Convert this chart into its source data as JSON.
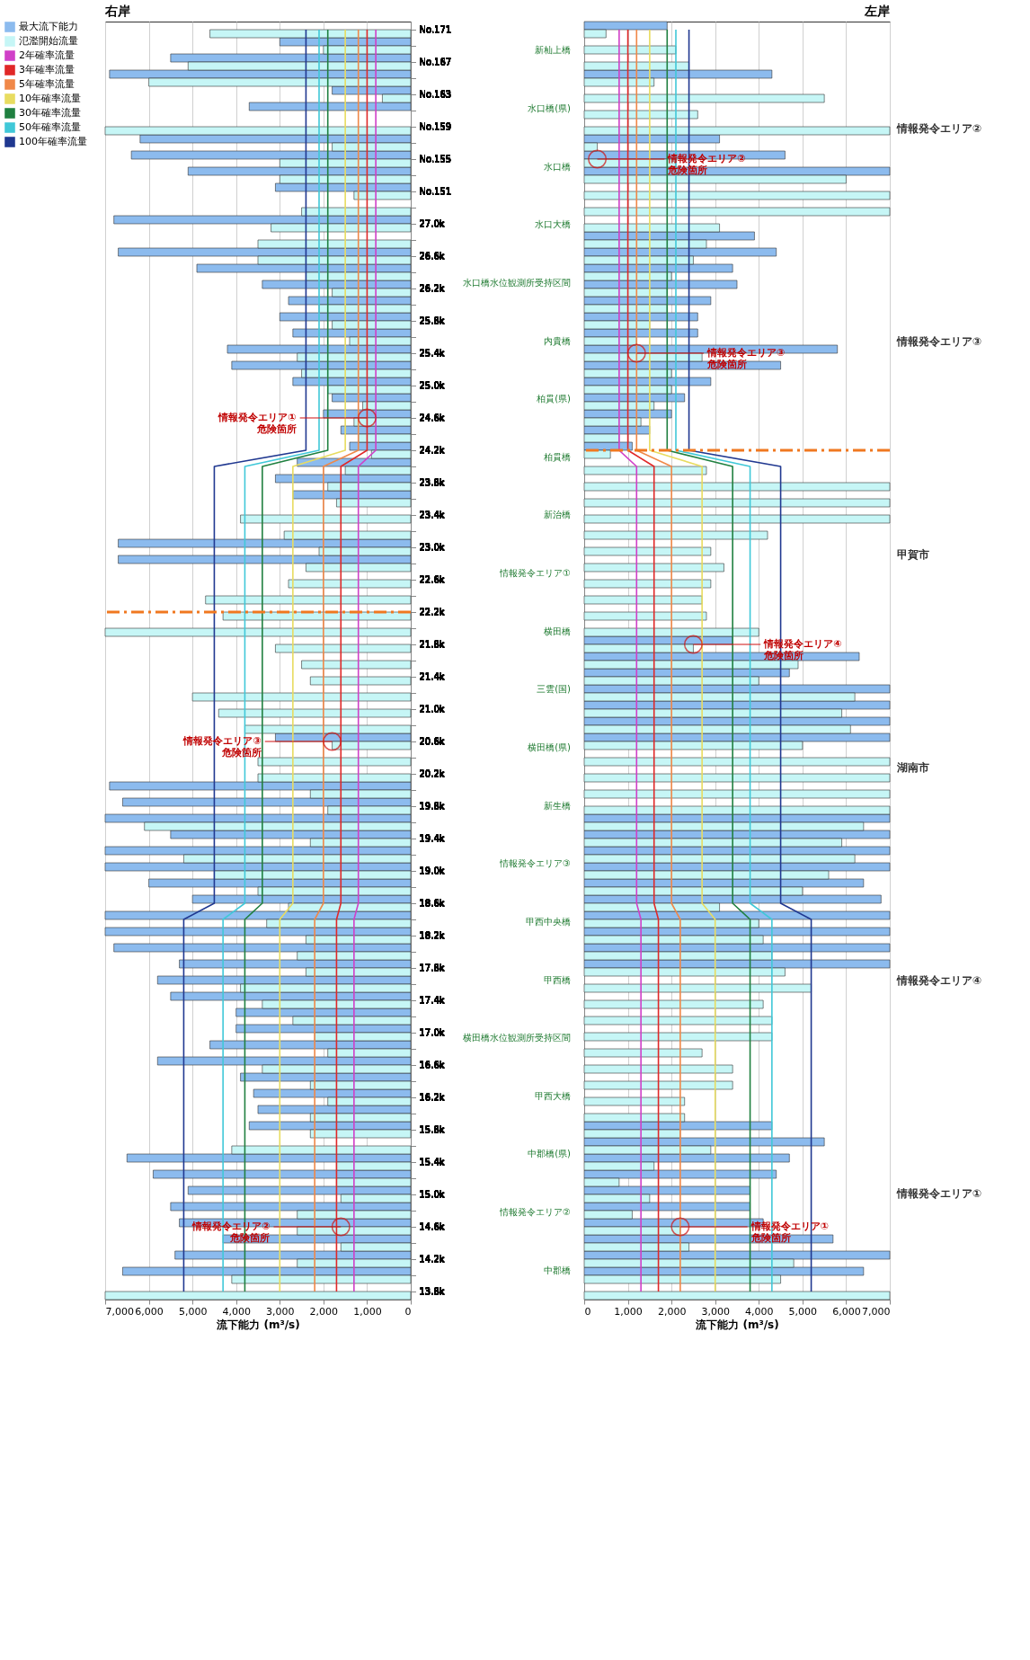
{
  "chart_data": [
    {
      "type": "bar",
      "orientation": "horizontal",
      "title": "右岸",
      "xlabel": "流下能力 (m³/s)",
      "categories": [
        "No.171",
        null,
        "No.167",
        null,
        "No.163",
        null,
        "No.159",
        null,
        "No.155",
        null,
        "No.151",
        null,
        "27.0k",
        null,
        "26.6k",
        null,
        "26.2k",
        null,
        "25.8k",
        null,
        "25.4k",
        null,
        "25.0k",
        null,
        "24.6k",
        null,
        "24.2k",
        null,
        "23.8k",
        null,
        "23.4k",
        null,
        "23.0k",
        null,
        "22.6k",
        null,
        "22.2k",
        null,
        "21.8k",
        null,
        "21.4k",
        null,
        "21.0k",
        null,
        "20.6k",
        null,
        "20.2k",
        null,
        "19.8k",
        null,
        "19.4k",
        null,
        "19.0k",
        null,
        "18.6k",
        null,
        "18.2k",
        null,
        "17.8k",
        null,
        "17.4k",
        null,
        "17.0k",
        null,
        "16.6k",
        null,
        "16.2k",
        null,
        "15.8k",
        null,
        "15.4k",
        null,
        "15.0k",
        null,
        "14.6k",
        null,
        "14.2k",
        null,
        "13.8k"
      ],
      "xlim": [
        7000,
        0
      ],
      "xticks": [
        {
          "value": 7000,
          "label": "7,000"
        },
        {
          "value": 6000,
          "label": "6,000"
        },
        {
          "value": 5000,
          "label": "5,000"
        },
        {
          "value": 4000,
          "label": "4,000"
        },
        {
          "value": 3000,
          "label": "3,000"
        },
        {
          "value": 2000,
          "label": "2,000"
        },
        {
          "value": 1000,
          "label": "1,000"
        },
        0
      ],
      "grid": "x",
      "legend": "left",
      "series": [
        {
          "name": "最大流下能力",
          "color": "#8cbbee",
          "values": [
            null,
            3000,
            5500,
            6900,
            1800,
            3700,
            null,
            6200,
            6400,
            5100,
            3100,
            null,
            6800,
            null,
            6700,
            4900,
            3400,
            2800,
            3000,
            2700,
            4200,
            4100,
            2700,
            1800,
            2000,
            1600,
            1400,
            2600,
            3100,
            2700,
            null,
            null,
            6700,
            6700,
            null,
            null,
            null,
            null,
            null,
            null,
            null,
            null,
            null,
            null,
            3100,
            null,
            null,
            6900,
            6600,
            7000,
            5500,
            7000,
            7000,
            6000,
            5000,
            7000,
            7000,
            6800,
            5300,
            5800,
            5500,
            4000,
            4000,
            4600,
            5800,
            3900,
            3600,
            3500,
            3700,
            null,
            6500,
            5900,
            5100,
            5500,
            5300,
            4300,
            5400,
            6600,
            null
          ]
        },
        {
          "name": "氾濫開始流量",
          "color": "#c6f6f6",
          "values": [
            4600,
            2000,
            5100,
            6000,
            650,
            null,
            7000,
            1800,
            3000,
            3000,
            1300,
            2500,
            3200,
            3500,
            3500,
            2400,
            1800,
            2100,
            1800,
            1400,
            2600,
            2500,
            1900,
            1100,
            1300,
            1200,
            900,
            1500,
            1900,
            1700,
            3900,
            2900,
            2100,
            2400,
            2800,
            4700,
            4300,
            7000,
            3100,
            2500,
            2300,
            5000,
            4400,
            3800,
            1800,
            3500,
            3500,
            2300,
            1900,
            6100,
            2300,
            5200,
            4500,
            3500,
            2800,
            3300,
            2400,
            2600,
            2400,
            3900,
            3400,
            2700,
            2200,
            1900,
            3400,
            2300,
            1900,
            2300,
            2300,
            4100,
            1700,
            1700,
            1600,
            2600,
            2600,
            1600,
            2600,
            4100,
            7000
          ]
        },
        {
          "name": "2年確率流量",
          "type": "line",
          "color": "#d040c8",
          "values": [
            800,
            800,
            800,
            800,
            800,
            800,
            800,
            800,
            800,
            800,
            800,
            800,
            800,
            800,
            800,
            800,
            800,
            800,
            800,
            800,
            800,
            800,
            800,
            800,
            800,
            800,
            800,
            1200,
            1200,
            1200,
            1200,
            1200,
            1200,
            1200,
            1200,
            1200,
            1200,
            1200,
            1200,
            1200,
            1200,
            1200,
            1200,
            1200,
            1200,
            1200,
            1200,
            1200,
            1200,
            1200,
            1200,
            1200,
            1200,
            1200,
            1200,
            1300,
            1300,
            1300,
            1300,
            1300,
            1300,
            1300,
            1300,
            1300,
            1300,
            1300,
            1300,
            1300,
            1300,
            1300,
            1300,
            1300,
            1300,
            1300,
            1300,
            1300,
            1300,
            1300,
            1300
          ]
        },
        {
          "name": "3年確率流量",
          "type": "line",
          "color": "#e02828",
          "values": [
            1000,
            1000,
            1000,
            1000,
            1000,
            1000,
            1000,
            1000,
            1000,
            1000,
            1000,
            1000,
            1000,
            1000,
            1000,
            1000,
            1000,
            1000,
            1000,
            1000,
            1000,
            1000,
            1000,
            1000,
            1000,
            1000,
            1000,
            1600,
            1600,
            1600,
            1600,
            1600,
            1600,
            1600,
            1600,
            1600,
            1600,
            1600,
            1600,
            1600,
            1600,
            1600,
            1600,
            1600,
            1600,
            1600,
            1600,
            1600,
            1600,
            1600,
            1600,
            1600,
            1600,
            1600,
            1600,
            1700,
            1700,
            1700,
            1700,
            1700,
            1700,
            1700,
            1700,
            1700,
            1700,
            1700,
            1700,
            1700,
            1700,
            1700,
            1700,
            1700,
            1700,
            1700,
            1700,
            1700,
            1700,
            1700,
            1700
          ]
        },
        {
          "name": "5年確率流量",
          "type": "line",
          "color": "#f08848",
          "values": [
            1200,
            1200,
            1200,
            1200,
            1200,
            1200,
            1200,
            1200,
            1200,
            1200,
            1200,
            1200,
            1200,
            1200,
            1200,
            1200,
            1200,
            1200,
            1200,
            1200,
            1200,
            1200,
            1200,
            1200,
            1200,
            1200,
            1200,
            2000,
            2000,
            2000,
            2000,
            2000,
            2000,
            2000,
            2000,
            2000,
            2000,
            2000,
            2000,
            2000,
            2000,
            2000,
            2000,
            2000,
            2000,
            2000,
            2000,
            2000,
            2000,
            2000,
            2000,
            2000,
            2000,
            2000,
            2000,
            2200,
            2200,
            2200,
            2200,
            2200,
            2200,
            2200,
            2200,
            2200,
            2200,
            2200,
            2200,
            2200,
            2200,
            2200,
            2200,
            2200,
            2200,
            2200,
            2200,
            2200,
            2200,
            2200,
            2200
          ]
        },
        {
          "name": "10年確率流量",
          "type": "line",
          "color": "#e8dc60",
          "values": [
            1500,
            1500,
            1500,
            1500,
            1500,
            1500,
            1500,
            1500,
            1500,
            1500,
            1500,
            1500,
            1500,
            1500,
            1500,
            1500,
            1500,
            1500,
            1500,
            1500,
            1500,
            1500,
            1500,
            1500,
            1500,
            1500,
            1500,
            2700,
            2700,
            2700,
            2700,
            2700,
            2700,
            2700,
            2700,
            2700,
            2700,
            2700,
            2700,
            2700,
            2700,
            2700,
            2700,
            2700,
            2700,
            2700,
            2700,
            2700,
            2700,
            2700,
            2700,
            2700,
            2700,
            2700,
            2700,
            3000,
            3000,
            3000,
            3000,
            3000,
            3000,
            3000,
            3000,
            3000,
            3000,
            3000,
            3000,
            3000,
            3000,
            3000,
            3000,
            3000,
            3000,
            3000,
            3000,
            3000,
            3000,
            3000,
            3000
          ]
        },
        {
          "name": "30年確率流量",
          "type": "line",
          "color": "#208040",
          "values": [
            1900,
            1900,
            1900,
            1900,
            1900,
            1900,
            1900,
            1900,
            1900,
            1900,
            1900,
            1900,
            1900,
            1900,
            1900,
            1900,
            1900,
            1900,
            1900,
            1900,
            1900,
            1900,
            1900,
            1900,
            1900,
            1900,
            1900,
            3400,
            3400,
            3400,
            3400,
            3400,
            3400,
            3400,
            3400,
            3400,
            3400,
            3400,
            3400,
            3400,
            3400,
            3400,
            3400,
            3400,
            3400,
            3400,
            3400,
            3400,
            3400,
            3400,
            3400,
            3400,
            3400,
            3400,
            3400,
            3800,
            3800,
            3800,
            3800,
            3800,
            3800,
            3800,
            3800,
            3800,
            3800,
            3800,
            3800,
            3800,
            3800,
            3800,
            3800,
            3800,
            3800,
            3800,
            3800,
            3800,
            3800,
            3800,
            3800
          ]
        },
        {
          "name": "50年確率流量",
          "type": "line",
          "color": "#40c8d8",
          "values": [
            2100,
            2100,
            2100,
            2100,
            2100,
            2100,
            2100,
            2100,
            2100,
            2100,
            2100,
            2100,
            2100,
            2100,
            2100,
            2100,
            2100,
            2100,
            2100,
            2100,
            2100,
            2100,
            2100,
            2100,
            2100,
            2100,
            2100,
            3800,
            3800,
            3800,
            3800,
            3800,
            3800,
            3800,
            3800,
            3800,
            3800,
            3800,
            3800,
            3800,
            3800,
            3800,
            3800,
            3800,
            3800,
            3800,
            3800,
            3800,
            3800,
            3800,
            3800,
            3800,
            3800,
            3800,
            3800,
            4300,
            4300,
            4300,
            4300,
            4300,
            4300,
            4300,
            4300,
            4300,
            4300,
            4300,
            4300,
            4300,
            4300,
            4300,
            4300,
            4300,
            4300,
            4300,
            4300,
            4300,
            4300,
            4300,
            4300
          ]
        },
        {
          "name": "100年確率流量",
          "type": "line",
          "color": "#203890",
          "values": [
            2400,
            2400,
            2400,
            2400,
            2400,
            2400,
            2400,
            2400,
            2400,
            2400,
            2400,
            2400,
            2400,
            2400,
            2400,
            2400,
            2400,
            2400,
            2400,
            2400,
            2400,
            2400,
            2400,
            2400,
            2400,
            2400,
            2400,
            4500,
            4500,
            4500,
            4500,
            4500,
            4500,
            4500,
            4500,
            4500,
            4500,
            4500,
            4500,
            4500,
            4500,
            4500,
            4500,
            4500,
            4500,
            4500,
            4500,
            4500,
            4500,
            4500,
            4500,
            4500,
            4500,
            4500,
            4500,
            5200,
            5200,
            5200,
            5200,
            5200,
            5200,
            5200,
            5200,
            5200,
            5200,
            5200,
            5200,
            5200,
            5200,
            5200,
            5200,
            5200,
            5200,
            5200,
            5200,
            5200,
            5200,
            5200,
            5200
          ]
        }
      ],
      "annotations": [
        {
          "text": "情報発令エリア③ 危険箇所",
          "x": 1800,
          "y": "20.6k"
        },
        {
          "text": "情報発令エリア② 危険箇所",
          "x": 1600,
          "y": "14.6k"
        },
        {
          "text": "情報発令エリア① 危険箇所",
          "x": 1000,
          "y": "24.6k"
        },
        "新杣上橋",
        "水口橋(県)",
        "水口橋",
        "水口大橋",
        "水口橋水位観測所受持区間",
        "内貴橋",
        "柏貫(県)",
        "柏貫橋",
        "新治橋",
        "情報発令エリア①",
        "横田橋",
        "三雲(国)",
        "横田橋(県)",
        "新生橋",
        "情報発令エリア③",
        "甲西中央橋",
        "甲西橋",
        "横田橋水位観測所受持区間",
        "甲西大橋",
        "中郡橋(県)",
        "情報発令エリア②",
        "中郡橋"
      ],
      "ref_lines": [
        {
          "axis": "y",
          "value": "22.2k",
          "color": "#f07820",
          "line_style": "dashed"
        }
      ]
    },
    {
      "type": "bar",
      "orientation": "horizontal",
      "title": "左岸",
      "xlabel": "流下能力 (m³/s)",
      "categories": [
        "No.171",
        null,
        "No.167",
        null,
        "No.163",
        null,
        "No.159",
        null,
        "No.155",
        null,
        "No.151",
        null,
        "27.0k",
        null,
        "26.6k",
        null,
        "26.2k",
        null,
        "25.8k",
        null,
        "25.4k",
        null,
        "25.0k",
        null,
        "24.6k",
        null,
        "24.2k",
        null,
        "23.8k",
        null,
        "23.4k",
        null,
        "23.0k",
        null,
        "22.6k",
        null,
        "22.2k",
        null,
        "21.8k",
        null,
        "21.4k",
        null,
        "21.0k",
        null,
        "20.6k",
        null,
        "20.2k",
        null,
        "19.8k",
        null,
        "19.4k",
        null,
        "19.0k",
        null,
        "18.6k",
        null,
        "18.2k",
        null,
        "17.8k",
        null,
        "17.4k",
        null,
        "17.0k",
        null,
        "16.6k",
        null,
        "16.2k",
        null,
        "15.8k",
        null,
        "15.4k",
        null,
        "15.0k",
        null,
        "14.6k",
        null,
        "14.2k",
        null,
        "13.8k"
      ],
      "xlim": [
        0,
        7000
      ],
      "xticks": [
        0,
        {
          "value": 1000,
          "label": "1,000"
        },
        {
          "value": 2000,
          "label": "2,000"
        },
        {
          "value": 3000,
          "label": "3,000"
        },
        {
          "value": 4000,
          "label": "4,000"
        },
        {
          "value": 5000,
          "label": "5,000"
        },
        {
          "value": 6000,
          "label": "6,000"
        },
        {
          "value": 7000,
          "label": "7,000"
        }
      ],
      "grid": "x",
      "tick_labels": "x",
      "series": [
        {
          "color": "#8cbbee",
          "values": [
            1900,
            null,
            null,
            4300,
            null,
            null,
            null,
            3100,
            4600,
            7000,
            null,
            null,
            null,
            3900,
            4400,
            3400,
            3500,
            2900,
            2600,
            2600,
            5800,
            4500,
            2900,
            2300,
            2000,
            1500,
            1100,
            null,
            null,
            null,
            null,
            null,
            null,
            null,
            null,
            null,
            null,
            null,
            3400,
            6300,
            4700,
            7000,
            7000,
            7000,
            7000,
            null,
            null,
            null,
            null,
            7000,
            7000,
            7000,
            7000,
            6400,
            6800,
            7000,
            7000,
            7000,
            7000,
            null,
            null,
            null,
            null,
            null,
            null,
            null,
            null,
            null,
            4300,
            5500,
            4700,
            4400,
            3800,
            3800,
            4100,
            5700,
            7000,
            6400,
            null
          ]
        },
        {
          "color": "#c6f6f6",
          "values": [
            500,
            2100,
            2400,
            1600,
            5500,
            2600,
            7000,
            300,
            2100,
            6000,
            7000,
            7000,
            3100,
            2800,
            2500,
            2000,
            1900,
            1900,
            1500,
            1200,
            2700,
            2000,
            2000,
            1600,
            1300,
            800,
            600,
            2800,
            7000,
            7000,
            7000,
            4200,
            2900,
            3200,
            2900,
            2700,
            2800,
            4000,
            2500,
            4900,
            4000,
            6200,
            5900,
            6100,
            5000,
            7000,
            7000,
            7000,
            7000,
            6400,
            5900,
            6200,
            5600,
            5000,
            3100,
            4000,
            4100,
            4300,
            4600,
            5200,
            4100,
            4300,
            4300,
            2700,
            3400,
            3400,
            2300,
            2300,
            2200,
            2900,
            1600,
            800,
            1500,
            1100,
            2200,
            2400,
            4800,
            4500,
            7000
          ]
        },
        {
          "type": "line",
          "color": "#d040c8",
          "values": [
            800,
            800,
            800,
            800,
            800,
            800,
            800,
            800,
            800,
            800,
            800,
            800,
            800,
            800,
            800,
            800,
            800,
            800,
            800,
            800,
            800,
            800,
            800,
            800,
            800,
            800,
            800,
            1200,
            1200,
            1200,
            1200,
            1200,
            1200,
            1200,
            1200,
            1200,
            1200,
            1200,
            1200,
            1200,
            1200,
            1200,
            1200,
            1200,
            1200,
            1200,
            1200,
            1200,
            1200,
            1200,
            1200,
            1200,
            1200,
            1200,
            1200,
            1300,
            1300,
            1300,
            1300,
            1300,
            1300,
            1300,
            1300,
            1300,
            1300,
            1300,
            1300,
            1300,
            1300,
            1300,
            1300,
            1300,
            1300,
            1300,
            1300,
            1300,
            1300,
            1300,
            1300
          ]
        },
        {
          "type": "line",
          "color": "#e02828",
          "values": [
            1000,
            1000,
            1000,
            1000,
            1000,
            1000,
            1000,
            1000,
            1000,
            1000,
            1000,
            1000,
            1000,
            1000,
            1000,
            1000,
            1000,
            1000,
            1000,
            1000,
            1000,
            1000,
            1000,
            1000,
            1000,
            1000,
            1000,
            1600,
            1600,
            1600,
            1600,
            1600,
            1600,
            1600,
            1600,
            1600,
            1600,
            1600,
            1600,
            1600,
            1600,
            1600,
            1600,
            1600,
            1600,
            1600,
            1600,
            1600,
            1600,
            1600,
            1600,
            1600,
            1600,
            1600,
            1600,
            1700,
            1700,
            1700,
            1700,
            1700,
            1700,
            1700,
            1700,
            1700,
            1700,
            1700,
            1700,
            1700,
            1700,
            1700,
            1700,
            1700,
            1700,
            1700,
            1700,
            1700,
            1700,
            1700,
            1700
          ]
        },
        {
          "type": "line",
          "color": "#f08848",
          "values": [
            1200,
            1200,
            1200,
            1200,
            1200,
            1200,
            1200,
            1200,
            1200,
            1200,
            1200,
            1200,
            1200,
            1200,
            1200,
            1200,
            1200,
            1200,
            1200,
            1200,
            1200,
            1200,
            1200,
            1200,
            1200,
            1200,
            1200,
            2000,
            2000,
            2000,
            2000,
            2000,
            2000,
            2000,
            2000,
            2000,
            2000,
            2000,
            2000,
            2000,
            2000,
            2000,
            2000,
            2000,
            2000,
            2000,
            2000,
            2000,
            2000,
            2000,
            2000,
            2000,
            2000,
            2000,
            2000,
            2200,
            2200,
            2200,
            2200,
            2200,
            2200,
            2200,
            2200,
            2200,
            2200,
            2200,
            2200,
            2200,
            2200,
            2200,
            2200,
            2200,
            2200,
            2200,
            2200,
            2200,
            2200,
            2200,
            2200
          ]
        },
        {
          "type": "line",
          "color": "#e8dc60",
          "values": [
            1500,
            1500,
            1500,
            1500,
            1500,
            1500,
            1500,
            1500,
            1500,
            1500,
            1500,
            1500,
            1500,
            1500,
            1500,
            1500,
            1500,
            1500,
            1500,
            1500,
            1500,
            1500,
            1500,
            1500,
            1500,
            1500,
            1500,
            2700,
            2700,
            2700,
            2700,
            2700,
            2700,
            2700,
            2700,
            2700,
            2700,
            2700,
            2700,
            2700,
            2700,
            2700,
            2700,
            2700,
            2700,
            2700,
            2700,
            2700,
            2700,
            2700,
            2700,
            2700,
            2700,
            2700,
            2700,
            3000,
            3000,
            3000,
            3000,
            3000,
            3000,
            3000,
            3000,
            3000,
            3000,
            3000,
            3000,
            3000,
            3000,
            3000,
            3000,
            3000,
            3000,
            3000,
            3000,
            3000,
            3000,
            3000,
            3000
          ]
        },
        {
          "type": "line",
          "color": "#208040",
          "values": [
            1900,
            1900,
            1900,
            1900,
            1900,
            1900,
            1900,
            1900,
            1900,
            1900,
            1900,
            1900,
            1900,
            1900,
            1900,
            1900,
            1900,
            1900,
            1900,
            1900,
            1900,
            1900,
            1900,
            1900,
            1900,
            1900,
            1900,
            3400,
            3400,
            3400,
            3400,
            3400,
            3400,
            3400,
            3400,
            3400,
            3400,
            3400,
            3400,
            3400,
            3400,
            3400,
            3400,
            3400,
            3400,
            3400,
            3400,
            3400,
            3400,
            3400,
            3400,
            3400,
            3400,
            3400,
            3400,
            3800,
            3800,
            3800,
            3800,
            3800,
            3800,
            3800,
            3800,
            3800,
            3800,
            3800,
            3800,
            3800,
            3800,
            3800,
            3800,
            3800,
            3800,
            3800,
            3800,
            3800,
            3800,
            3800,
            3800
          ]
        },
        {
          "type": "line",
          "color": "#40c8d8",
          "values": [
            2100,
            2100,
            2100,
            2100,
            2100,
            2100,
            2100,
            2100,
            2100,
            2100,
            2100,
            2100,
            2100,
            2100,
            2100,
            2100,
            2100,
            2100,
            2100,
            2100,
            2100,
            2100,
            2100,
            2100,
            2100,
            2100,
            2100,
            3800,
            3800,
            3800,
            3800,
            3800,
            3800,
            3800,
            3800,
            3800,
            3800,
            3800,
            3800,
            3800,
            3800,
            3800,
            3800,
            3800,
            3800,
            3800,
            3800,
            3800,
            3800,
            3800,
            3800,
            3800,
            3800,
            3800,
            3800,
            4300,
            4300,
            4300,
            4300,
            4300,
            4300,
            4300,
            4300,
            4300,
            4300,
            4300,
            4300,
            4300,
            4300,
            4300,
            4300,
            4300,
            4300,
            4300,
            4300,
            4300,
            4300,
            4300,
            4300
          ]
        },
        {
          "type": "line",
          "color": "#203890",
          "values": [
            2400,
            2400,
            2400,
            2400,
            2400,
            2400,
            2400,
            2400,
            2400,
            2400,
            2400,
            2400,
            2400,
            2400,
            2400,
            2400,
            2400,
            2400,
            2400,
            2400,
            2400,
            2400,
            2400,
            2400,
            2400,
            2400,
            2400,
            4500,
            4500,
            4500,
            4500,
            4500,
            4500,
            4500,
            4500,
            4500,
            4500,
            4500,
            4500,
            4500,
            4500,
            4500,
            4500,
            4500,
            4500,
            4500,
            4500,
            4500,
            4500,
            4500,
            4500,
            4500,
            4500,
            4500,
            4500,
            5200,
            5200,
            5200,
            5200,
            5200,
            5200,
            5200,
            5200,
            5200,
            5200,
            5200,
            5200,
            5200,
            5200,
            5200,
            5200,
            5200,
            5200,
            5200,
            5200,
            5200,
            5200,
            5200,
            5200
          ]
        }
      ],
      "annotations": [
        {
          "text": "情報発令エリア④ 危険箇所",
          "x": 2500,
          "y": "21.8k"
        },
        {
          "text": "情報発令エリア① 危険箇所",
          "x": 2200,
          "y": "14.6k"
        },
        {
          "text": "情報発令エリア② 危険箇所",
          "x": 300,
          "y": "No.155"
        },
        {
          "text": "情報発令エリア③ 危険箇所",
          "x": 1200,
          "y": "25.4k"
        },
        "情報発令エリア②",
        "情報発令エリア③",
        "甲賀市",
        "湖南市",
        "情報発令エリア④",
        "情報発令エリア①"
      ],
      "ref_lines": [
        {
          "axis": "y",
          "value": "24.2k",
          "color": "#f07820",
          "line_style": "dashed"
        }
      ]
    }
  ]
}
